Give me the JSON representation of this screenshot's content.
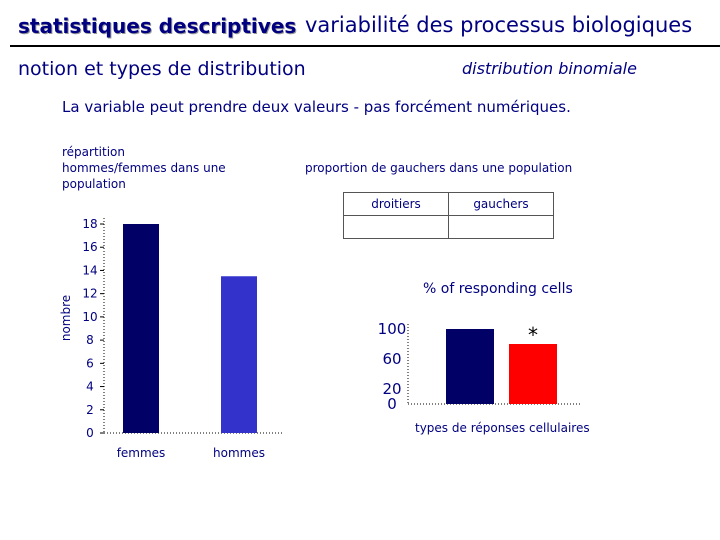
{
  "header": {
    "title": "statistiques descriptives",
    "subtitle_right": "variabilité des processus biologiques"
  },
  "section_title": "notion et types de distribution",
  "distribution_label": "distribution binomiale",
  "intro_text": "La variable peut prendre deux valeurs - pas forcément numériques.",
  "left_chart_caption": "répartition hommes/femmes dans une population",
  "proportion_caption": "proportion de gauchers dans une population",
  "table": {
    "headers": [
      "droitiers",
      "gauchers"
    ],
    "row": [
      "",
      ""
    ]
  },
  "right_chart_title": "% of responding cells",
  "right_chart_xlabel": "types de réponses cellulaires",
  "colors": {
    "text": "#000080",
    "femmes_bar": "#000066",
    "hommes_bar": "#3333cc",
    "right_bar_1": "#000066",
    "right_bar_2": "#ff0000"
  },
  "chart_data": [
    {
      "type": "bar",
      "categories": [
        "femmes",
        "hommes"
      ],
      "values": [
        18,
        13.5
      ],
      "ylabel": "nombre",
      "ylim": [
        0,
        18
      ],
      "yticks": [
        "0",
        "2",
        "4",
        "6",
        "8",
        "10",
        "12",
        "14",
        "16",
        "18"
      ],
      "colors": [
        "#000066",
        "#3333cc"
      ]
    },
    {
      "type": "bar",
      "title": "% of responding cells",
      "xlabel": "types de réponses cellulaires",
      "categories": [
        "",
        ""
      ],
      "values": [
        100,
        80
      ],
      "ylim": [
        0,
        100
      ],
      "yticks": [
        "0",
        "20",
        "60",
        "100"
      ],
      "annotation": "*",
      "colors": [
        "#000066",
        "#ff0000"
      ]
    }
  ]
}
